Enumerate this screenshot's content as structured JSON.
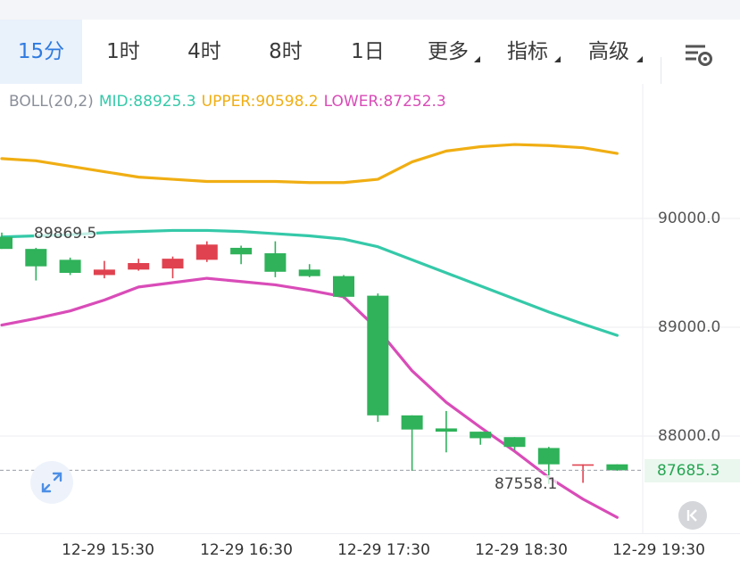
{
  "tabs": [
    {
      "label": "15分",
      "active": true,
      "dropdown": false
    },
    {
      "label": "1时",
      "active": false,
      "dropdown": false
    },
    {
      "label": "4时",
      "active": false,
      "dropdown": false
    },
    {
      "label": "8时",
      "active": false,
      "dropdown": false
    },
    {
      "label": "1日",
      "active": false,
      "dropdown": false
    },
    {
      "label": "更多",
      "active": false,
      "dropdown": true
    },
    {
      "label": "指标",
      "active": false,
      "dropdown": true
    },
    {
      "label": "高级",
      "active": false,
      "dropdown": true
    }
  ],
  "settings_icon": "chart-settings-icon",
  "indicator": {
    "name": "BOLL(20,2)",
    "mid": "MID:88925.3",
    "upper": "UPPER:90598.2",
    "lower": "LOWER:87252.3"
  },
  "colors": {
    "up": "#e0424f",
    "down": "#2fb25a",
    "mid": "#35c9a9",
    "upper": "#f0ae13",
    "lower": "#d94cb8",
    "accent": "#2f7be0"
  },
  "labels": {
    "high_marker": "89869.5",
    "low_marker": "87558.1",
    "last_price": "87685.3"
  },
  "chart_data": {
    "type": "candlestick",
    "y_axis_ticks": [
      "90000.0",
      "89000.0",
      "88000.0"
    ],
    "ylim": [
      87100,
      91020
    ],
    "x_tick_labels": [
      "12-29 15:30",
      "12-29 16:30",
      "12-29 17:30",
      "12-29 18:30",
      "12-29 19:30"
    ],
    "candles": [
      {
        "open": 89830,
        "high": 89870,
        "low": 89720,
        "close": 89720
      },
      {
        "open": 89720,
        "high": 89730,
        "low": 89430,
        "close": 89560
      },
      {
        "open": 89620,
        "high": 89640,
        "low": 89480,
        "close": 89500
      },
      {
        "open": 89480,
        "high": 89610,
        "low": 89450,
        "close": 89530
      },
      {
        "open": 89530,
        "high": 89630,
        "low": 89520,
        "close": 89590
      },
      {
        "open": 89540,
        "high": 89650,
        "low": 89450,
        "close": 89630
      },
      {
        "open": 89620,
        "high": 89790,
        "low": 89600,
        "close": 89760
      },
      {
        "open": 89730,
        "high": 89750,
        "low": 89580,
        "close": 89670
      },
      {
        "open": 89680,
        "high": 89790,
        "low": 89460,
        "close": 89510
      },
      {
        "open": 89530,
        "high": 89580,
        "low": 89460,
        "close": 89470
      },
      {
        "open": 89470,
        "high": 89480,
        "low": 89260,
        "close": 89280
      },
      {
        "open": 89290,
        "high": 89310,
        "low": 88130,
        "close": 88190
      },
      {
        "open": 88190,
        "high": 88190,
        "low": 87680,
        "close": 88060
      },
      {
        "open": 88070,
        "high": 88230,
        "low": 87850,
        "close": 88040
      },
      {
        "open": 88040,
        "high": 88040,
        "low": 87920,
        "close": 87980
      },
      {
        "open": 87990,
        "high": 87990,
        "low": 87870,
        "close": 87900
      },
      {
        "open": 87890,
        "high": 87900,
        "low": 87560,
        "close": 87740
      },
      {
        "open": 87740,
        "high": 87740,
        "low": 87570,
        "close": 87740
      },
      {
        "open": 87740,
        "high": 87740,
        "low": 87680,
        "close": 87685
      }
    ],
    "boll": {
      "upper": [
        90550,
        90530,
        90480,
        90430,
        90380,
        90360,
        90340,
        90340,
        90340,
        90330,
        90330,
        90360,
        90520,
        90620,
        90660,
        90680,
        90670,
        90650,
        90598
      ],
      "mid": [
        89830,
        89840,
        89850,
        89870,
        89880,
        89890,
        89890,
        89880,
        89860,
        89840,
        89810,
        89740,
        89620,
        89500,
        89380,
        89260,
        89140,
        89030,
        88925
      ],
      "lower": [
        89020,
        89080,
        89150,
        89250,
        89370,
        89410,
        89450,
        89420,
        89390,
        89340,
        89280,
        88980,
        88600,
        88310,
        88080,
        87860,
        87620,
        87420,
        87252
      ]
    },
    "last_price": 87685.3
  }
}
